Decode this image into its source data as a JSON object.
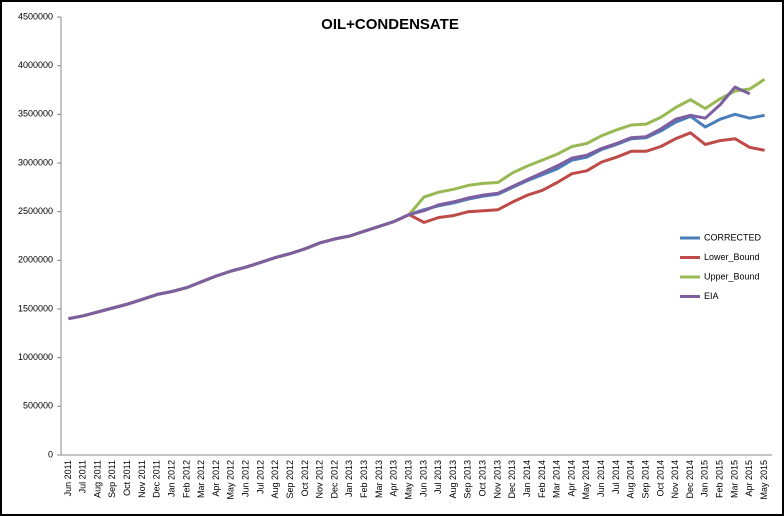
{
  "chart_data": {
    "type": "line",
    "title": "OIL+CONDENSATE",
    "categories": [
      "Jun 2011",
      "Jul 2011",
      "Aug 2011",
      "Sep 2011",
      "Oct 2011",
      "Nov 2011",
      "Dec 2011",
      "Jan 2012",
      "Feb 2012",
      "Mar 2012",
      "Apr 2012",
      "May 2012",
      "Jun 2012",
      "Jul 2012",
      "Aug 2012",
      "Sep 2012",
      "Oct 2012",
      "Nov 2012",
      "Dec 2012",
      "Jan 2013",
      "Feb 2013",
      "Mar 2013",
      "Apr 2013",
      "May 2013",
      "Jun 2013",
      "Jul 2013",
      "Aug 2013",
      "Sep 2013",
      "Oct 2013",
      "Nov 2013",
      "Dec 2013",
      "Jan 2014",
      "Feb 2014",
      "Mar 2014",
      "Apr 2014",
      "May 2014",
      "Jun 2014",
      "Jul 2014",
      "Aug 2014",
      "Sep 2014",
      "Oct 2014",
      "Nov 2014",
      "Dec 2014",
      "Jan 2015",
      "Feb 2015",
      "Mar 2015",
      "Apr 2015",
      "May 2015"
    ],
    "series": [
      {
        "name": "CORRECTED",
        "color": "#4a7ebb",
        "values": [
          1400000,
          1430000,
          1470000,
          1510000,
          1550000,
          1600000,
          1650000,
          1680000,
          1720000,
          1780000,
          1840000,
          1890000,
          1930000,
          1980000,
          2030000,
          2070000,
          2120000,
          2180000,
          2220000,
          2250000,
          2300000,
          2350000,
          2400000,
          2470000,
          2520000,
          2560000,
          2590000,
          2630000,
          2660000,
          2680000,
          2750000,
          2820000,
          2880000,
          2940000,
          3030000,
          3060000,
          3140000,
          3190000,
          3250000,
          3260000,
          3330000,
          3420000,
          3480000,
          3370000,
          3450000,
          3500000,
          3460000,
          3490000
        ]
      },
      {
        "name": "Lower_Bound",
        "color": "#be4b48",
        "values": [
          1400000,
          1430000,
          1470000,
          1510000,
          1550000,
          1600000,
          1650000,
          1680000,
          1720000,
          1780000,
          1840000,
          1890000,
          1930000,
          1980000,
          2030000,
          2070000,
          2120000,
          2180000,
          2220000,
          2250000,
          2300000,
          2350000,
          2400000,
          2470000,
          2390000,
          2440000,
          2460000,
          2500000,
          2510000,
          2520000,
          2600000,
          2670000,
          2720000,
          2800000,
          2890000,
          2920000,
          3010000,
          3060000,
          3120000,
          3120000,
          3170000,
          3250000,
          3310000,
          3190000,
          3230000,
          3250000,
          3160000,
          3130000
        ]
      },
      {
        "name": "Upper_Bound",
        "color": "#98b954",
        "values": [
          1400000,
          1430000,
          1470000,
          1510000,
          1550000,
          1600000,
          1650000,
          1680000,
          1720000,
          1780000,
          1840000,
          1890000,
          1930000,
          1980000,
          2030000,
          2070000,
          2120000,
          2180000,
          2220000,
          2250000,
          2300000,
          2350000,
          2400000,
          2470000,
          2650000,
          2700000,
          2730000,
          2770000,
          2790000,
          2800000,
          2900000,
          2970000,
          3030000,
          3090000,
          3170000,
          3200000,
          3280000,
          3340000,
          3390000,
          3400000,
          3470000,
          3570000,
          3650000,
          3560000,
          3660000,
          3740000,
          3760000,
          3860000
        ]
      },
      {
        "name": "EIA",
        "color": "#7d5fa0",
        "values": [
          1400000,
          1430000,
          1470000,
          1510000,
          1550000,
          1600000,
          1650000,
          1680000,
          1720000,
          1780000,
          1840000,
          1890000,
          1930000,
          1980000,
          2030000,
          2070000,
          2120000,
          2180000,
          2220000,
          2250000,
          2300000,
          2350000,
          2400000,
          2470000,
          2510000,
          2570000,
          2600000,
          2640000,
          2670000,
          2690000,
          2760000,
          2830000,
          2900000,
          2970000,
          3050000,
          3080000,
          3150000,
          3200000,
          3260000,
          3270000,
          3350000,
          3450000,
          3490000,
          3460000,
          3600000,
          3780000,
          3710000,
          null
        ]
      }
    ],
    "ylim": [
      0,
      4500000
    ],
    "yticks": [
      0,
      500000,
      1000000,
      1500000,
      2000000,
      2500000,
      3000000,
      3500000,
      4000000,
      4500000
    ],
    "grid": false,
    "legend": "right"
  }
}
